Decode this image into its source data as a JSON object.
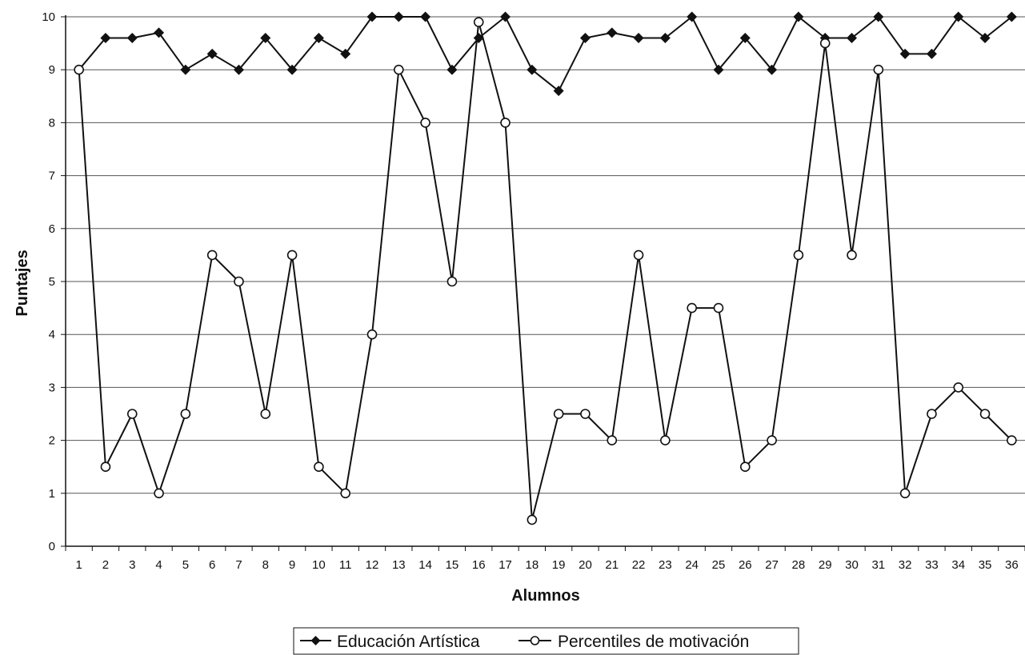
{
  "chart_data": {
    "type": "line",
    "title": "",
    "xlabel": "Alumnos",
    "ylabel": "Puntajes",
    "x": [
      1,
      2,
      3,
      4,
      5,
      6,
      7,
      8,
      9,
      10,
      11,
      12,
      13,
      14,
      15,
      16,
      17,
      18,
      19,
      20,
      21,
      22,
      23,
      24,
      25,
      26,
      27,
      28,
      29,
      30,
      31,
      32,
      33,
      34,
      35,
      36
    ],
    "ylim": [
      0,
      10
    ],
    "yticks": [
      "0",
      "1",
      "2",
      "3",
      "4",
      "5",
      "6",
      "7",
      "8",
      "9",
      "10"
    ],
    "grid": "horizontal",
    "legend_position": "bottom",
    "series": [
      {
        "name": "Educación Artística",
        "marker": "filled-diamond",
        "color": "#111111",
        "values": [
          9,
          9.6,
          9.6,
          9.7,
          9,
          9.3,
          9,
          9.6,
          9,
          9.6,
          9.3,
          10,
          10,
          10,
          9,
          9.6,
          10,
          9,
          8.6,
          9.6,
          9.7,
          9.6,
          9.6,
          10,
          9,
          9.6,
          9,
          10,
          9.6,
          9.6,
          10,
          9.3,
          9.3,
          10,
          9.6,
          10
        ]
      },
      {
        "name": "Percentiles de motivación",
        "marker": "open-circle",
        "color": "#111111",
        "values": [
          9,
          1.5,
          2.5,
          1,
          2.5,
          5.5,
          5,
          2.5,
          5.5,
          1.5,
          1,
          4,
          9,
          8,
          5,
          9.9,
          8,
          0.5,
          2.5,
          2.5,
          2,
          5.5,
          2,
          4.5,
          4.5,
          1.5,
          2,
          5.5,
          9.5,
          5.5,
          9,
          1,
          2.5,
          3,
          2.5,
          2
        ]
      }
    ]
  }
}
